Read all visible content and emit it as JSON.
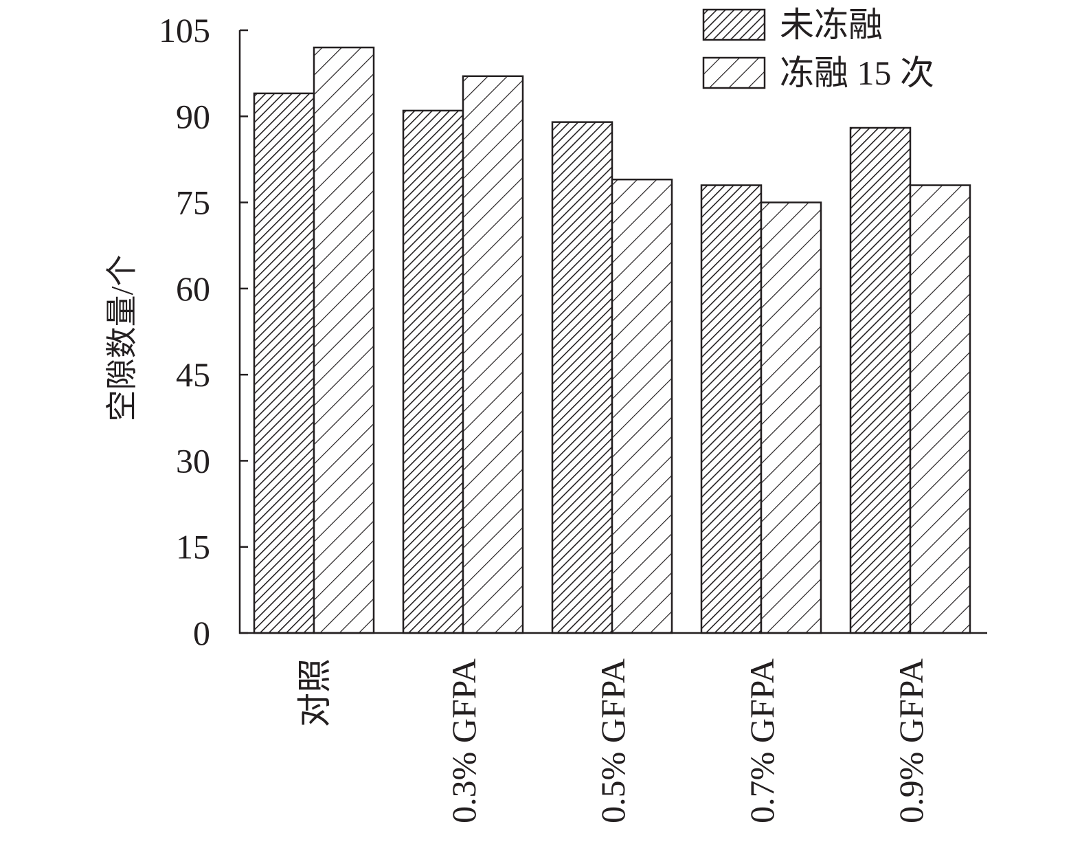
{
  "chart_data": {
    "type": "bar",
    "title": "",
    "xlabel": "",
    "ylabel": "空隙数量/个",
    "categories": [
      "对照",
      "0.3% GFPA",
      "0.5% GFPA",
      "0.7% GFPA",
      "0.9% GFPA"
    ],
    "series": [
      {
        "name": "未冻融",
        "values": [
          94,
          91,
          89,
          78,
          88
        ],
        "pattern": "dense-hatch"
      },
      {
        "name": "冻融 15 次",
        "values": [
          102,
          97,
          79,
          75,
          78
        ],
        "pattern": "sparse-hatch"
      }
    ],
    "ylim": [
      0,
      105
    ],
    "yticks": [
      0,
      15,
      30,
      45,
      60,
      75,
      90,
      105
    ],
    "grid": false,
    "legend_position": "top-right",
    "colors": {
      "ink": "#231f20",
      "fill": "#ffffff"
    }
  }
}
